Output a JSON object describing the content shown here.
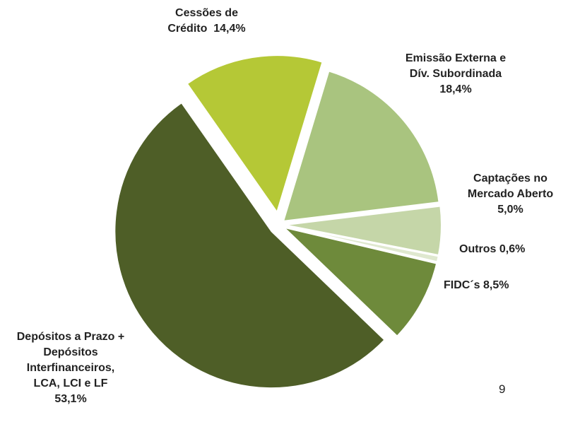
{
  "chart_data": {
    "type": "pie",
    "categories": [
      "Cessões de Crédito",
      "Emissão Externa e Dív. Subordinada",
      "Captações no Mercado Aberto",
      "Outros",
      "FIDC´s",
      "Depósitos a Prazo + Depósitos Interfinanceiros, LCA, LCI e LF"
    ],
    "values": [
      14.4,
      18.4,
      5.0,
      0.6,
      8.5,
      53.1
    ],
    "value_labels": [
      "14,4%",
      "18,4%",
      "5,0%",
      "0,6%",
      "8,5%",
      "53,1%"
    ],
    "colors": [
      "#b5c836",
      "#a9c47f",
      "#c5d6a8",
      "#dfe8cf",
      "#6e8a3b",
      "#4e5e27"
    ]
  },
  "page_number": "9"
}
